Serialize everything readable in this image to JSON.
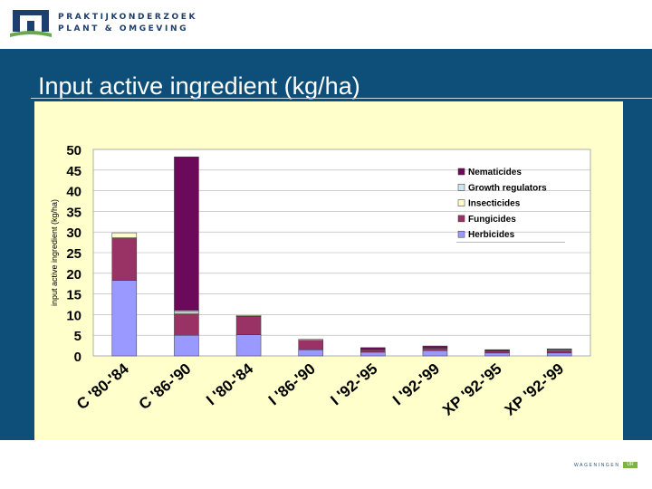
{
  "header": {
    "org_line1": "PRAKTIJKONDERZOEK",
    "org_line2": "PLANT & OMGEVING"
  },
  "slide": {
    "title": "Input active ingredient (kg/ha)"
  },
  "footer": {
    "brand": "WAGENINGEN",
    "brand_suffix": "UR"
  },
  "colors": {
    "band": "#0d4f79",
    "panel": "#ffffcc",
    "Nematicides": "#6b0a5a",
    "Growth regulators": "#cce8f0",
    "Insecticides": "#ffffcc",
    "Fungicides": "#993366",
    "Herbicides": "#9999ff"
  },
  "chart_data": {
    "type": "bar",
    "stacked": true,
    "title": "",
    "xlabel": "",
    "ylabel": "input active ingredient (kg/ha)",
    "ylim": [
      0,
      50
    ],
    "yticks": [
      0,
      5,
      10,
      15,
      20,
      25,
      30,
      35,
      40,
      45,
      50
    ],
    "grid": true,
    "legend_position": "top-right",
    "categories": [
      "C '80-'84",
      "C '86-'90",
      "I '80-'84",
      "I '86-'90",
      "I '92-'95",
      "I '92-'99",
      "XP '92-'95",
      "XP '92-'99"
    ],
    "series": [
      {
        "name": "Herbicides",
        "values": [
          18.3,
          5.0,
          5.1,
          1.5,
          0.9,
          1.3,
          0.7,
          0.7
        ]
      },
      {
        "name": "Fungicides",
        "values": [
          10.3,
          5.2,
          4.5,
          2.3,
          0.6,
          0.6,
          0.5,
          0.6
        ]
      },
      {
        "name": "Insecticides",
        "values": [
          1.2,
          0.4,
          0.2,
          0.2,
          0.1,
          0.1,
          0.1,
          0.1
        ]
      },
      {
        "name": "Growth regulators",
        "values": [
          0.0,
          0.4,
          0.0,
          0.0,
          0.1,
          0.1,
          0.1,
          0.2
        ]
      },
      {
        "name": "Nematicides",
        "values": [
          0.0,
          37.2,
          0.0,
          0.0,
          0.3,
          0.3,
          0.1,
          0.1
        ]
      }
    ],
    "legend_order": [
      "Nematicides",
      "Growth regulators",
      "Insecticides",
      "Fungicides",
      "Herbicides"
    ]
  }
}
